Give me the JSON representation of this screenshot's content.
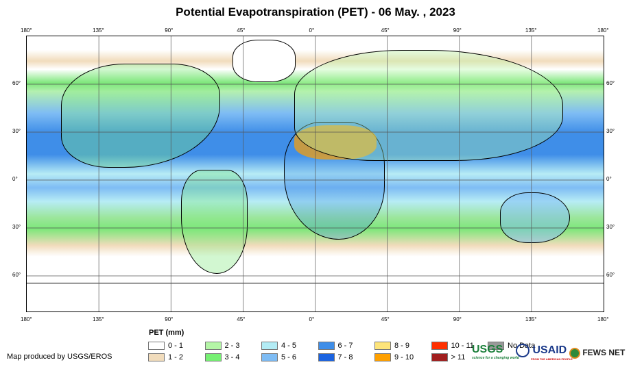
{
  "title": "Potential Evapotranspiration (PET) - 06 May. , 2023",
  "lon_labels": [
    "180°",
    "135°",
    "90°",
    "45°",
    "0°",
    "45°",
    "90°",
    "135°",
    "180°"
  ],
  "lat_labels": [
    "60°",
    "30°",
    "0°",
    "30°",
    "60°"
  ],
  "legend": {
    "title": "PET (mm)",
    "items": [
      {
        "label": "0 - 1",
        "color": "#ffffff"
      },
      {
        "label": "1 - 2",
        "color": "#f1dcbc"
      },
      {
        "label": "2 - 3",
        "color": "#b4f5a6"
      },
      {
        "label": "3 - 4",
        "color": "#76f073"
      },
      {
        "label": "4 - 5",
        "color": "#b3ecf5"
      },
      {
        "label": "5 - 6",
        "color": "#7ebcf4"
      },
      {
        "label": "6 - 7",
        "color": "#3f8ee8"
      },
      {
        "label": "7 - 8",
        "color": "#1b63e0"
      },
      {
        "label": "8 - 9",
        "color": "#fde47a"
      },
      {
        "label": "9 - 10",
        "color": "#ffa000"
      },
      {
        "label": "10 - 11",
        "color": "#ff3000"
      },
      {
        "label": "> 11",
        "color": "#a01e1e"
      },
      {
        "label": "No Data",
        "color": "#999999"
      }
    ]
  },
  "credit": "Map produced by USGS/EROS",
  "logos": {
    "usgs": "USGS",
    "usgs_tag": "science for a changing world",
    "usaid": "USAID",
    "usaid_tag": "FROM THE AMERICAN PEOPLE",
    "fews": "FEWS NET"
  }
}
